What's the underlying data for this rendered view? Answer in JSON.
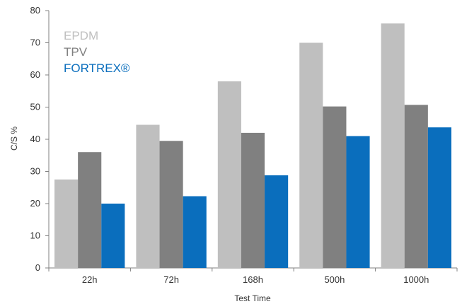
{
  "chart_data": {
    "type": "bar",
    "categories": [
      "22h",
      "72h",
      "168h",
      "500h",
      "1000h"
    ],
    "series": [
      {
        "name": "EPDM",
        "color": "#bfbfbf",
        "values": [
          27.5,
          44.5,
          58,
          70,
          76
        ]
      },
      {
        "name": "TPV",
        "color": "#808080",
        "values": [
          36,
          39.5,
          42,
          50.2,
          50.7
        ]
      },
      {
        "name": "FORTREX®",
        "color": "#0a6ebd",
        "values": [
          20,
          22.3,
          28.8,
          41,
          43.7
        ]
      }
    ],
    "xlabel": "Test Time",
    "ylabel": "C/S %",
    "ylim": [
      0,
      80
    ],
    "yticks": [
      "0",
      "10",
      "20",
      "30",
      "40",
      "50",
      "60",
      "70",
      "80"
    ],
    "grid": false,
    "legend_position": "top-left"
  }
}
